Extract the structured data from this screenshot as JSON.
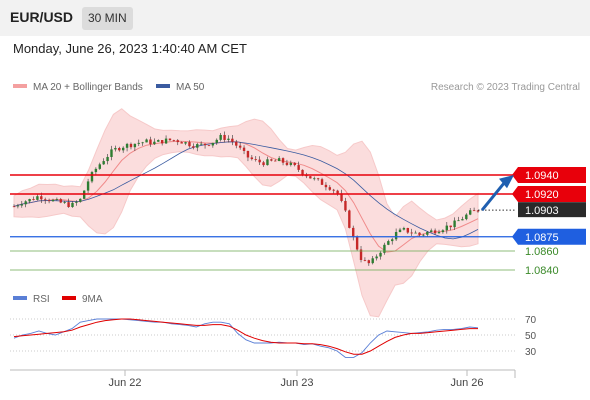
{
  "header": {
    "symbol": "EUR/USD",
    "timeframe": "30 MIN"
  },
  "datetime": "Monday, June 26, 2023 1:40:40 AM CET",
  "legend": {
    "bollinger": "MA 20 + Bollinger Bands",
    "ma50": "MA 50",
    "credit": "Research © 2023 Trading Central"
  },
  "rsi_legend": {
    "rsi": "RSI",
    "ma9": "9MA"
  },
  "colors": {
    "resistance": "#e8000b",
    "support": "#1f5fe0",
    "support_minor": "#6aa84f",
    "candle_up": "#2e7d32",
    "candle_down": "#c62828",
    "bollinger": "#f4a0a0",
    "ma50": "#3a5ba0",
    "rsi": "#5a7fd6",
    "rsi_ma": "#e00000",
    "arrow": "#1f5fb0"
  },
  "chart_data": [
    {
      "type": "candlestick",
      "title": "",
      "ylim": [
        1.0825,
        1.0985
      ],
      "x_ticks": [
        "Jun 22",
        "Jun 23",
        "Jun 26"
      ],
      "levels": [
        {
          "label": "1.0940",
          "value": 1.094,
          "kind": "resistance"
        },
        {
          "label": "1.0920",
          "value": 1.092,
          "kind": "resistance"
        },
        {
          "label": "1.0903",
          "value": 1.0903,
          "kind": "last"
        },
        {
          "label": "1.0875",
          "value": 1.0875,
          "kind": "support"
        },
        {
          "label": "1.0860",
          "value": 1.086,
          "kind": "support_minor"
        },
        {
          "label": "1.0840",
          "value": 1.084,
          "kind": "support_minor"
        }
      ],
      "close_path": [
        1.0907,
        1.0912,
        1.0914,
        1.0918,
        1.0915,
        1.0912,
        1.091,
        1.0908,
        1.0914,
        1.0935,
        1.0948,
        1.0958,
        1.0966,
        1.097,
        1.0972,
        1.0974,
        1.0975,
        1.0974,
        1.0976,
        1.0977,
        1.0976,
        1.0973,
        1.0971,
        1.0972,
        1.0975,
        1.098,
        1.0978,
        1.097,
        1.096,
        1.0955,
        1.0953,
        1.0954,
        1.0955,
        1.0952,
        1.0948,
        1.0942,
        1.0936,
        1.0932,
        1.0928,
        1.0922,
        1.09,
        1.0872,
        1.085,
        1.0846,
        1.0858,
        1.0868,
        1.0878,
        1.0882,
        1.088,
        1.0877,
        1.088,
        1.0882,
        1.0885,
        1.0888,
        1.0894,
        1.09,
        1.0903
      ]
    },
    {
      "type": "line",
      "title": "RSI",
      "ylim": [
        20,
        80
      ],
      "y_ticks": [
        70,
        50,
        30
      ],
      "rsi": [
        46,
        50,
        52,
        55,
        52,
        50,
        54,
        58,
        66,
        68,
        70,
        70,
        70,
        70,
        69,
        68,
        67,
        66,
        66,
        64,
        63,
        62,
        60,
        64,
        66,
        66,
        64,
        52,
        44,
        40,
        40,
        40,
        41,
        40,
        40,
        38,
        39,
        36,
        34,
        30,
        22,
        22,
        28,
        40,
        50,
        55,
        54,
        53,
        52,
        53,
        54,
        56,
        57,
        57,
        58,
        60,
        59
      ],
      "ma9": [
        48,
        49,
        50,
        51,
        52,
        53,
        54,
        56,
        60,
        63,
        66,
        68,
        69,
        70,
        70,
        69,
        68,
        67,
        66,
        65,
        64,
        63,
        62,
        62,
        63,
        63,
        61,
        56,
        50,
        46,
        43,
        41,
        40,
        40,
        40,
        39,
        39,
        38,
        36,
        33,
        29,
        26,
        26,
        30,
        36,
        42,
        47,
        50,
        52,
        52,
        53,
        54,
        55,
        56,
        57,
        58,
        58
      ]
    }
  ]
}
